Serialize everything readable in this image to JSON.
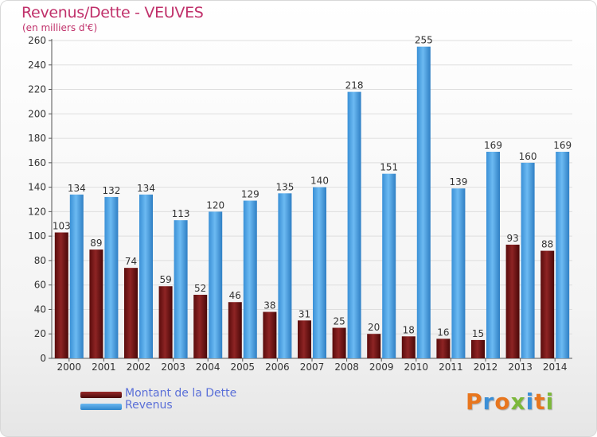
{
  "title": "Revenus/Dette - VEUVES",
  "subtitle": "(en milliers d'€)",
  "logo": "Proxiti",
  "colors": {
    "debt": "#7a1a1a",
    "revenue": "#4aa3e6",
    "title": "#c0306a",
    "legend_text": "#5a6fd8"
  },
  "chart_data": {
    "type": "bar",
    "categories": [
      "2000",
      "2001",
      "2002",
      "2003",
      "2004",
      "2005",
      "2006",
      "2007",
      "2008",
      "2009",
      "2010",
      "2011",
      "2012",
      "2013",
      "2014"
    ],
    "series": [
      {
        "name": "Montant de la Dette",
        "values": [
          103,
          89,
          74,
          59,
          52,
          46,
          38,
          31,
          25,
          20,
          18,
          16,
          15,
          93,
          88
        ]
      },
      {
        "name": "Revenus",
        "values": [
          134,
          132,
          134,
          113,
          120,
          129,
          135,
          140,
          218,
          151,
          255,
          139,
          169,
          160,
          169
        ]
      }
    ],
    "ylim": [
      0,
      260
    ],
    "yticks": [
      0,
      20,
      40,
      60,
      80,
      100,
      120,
      140,
      160,
      180,
      200,
      220,
      240,
      260
    ],
    "grid": true,
    "legend": "bottom-left"
  }
}
